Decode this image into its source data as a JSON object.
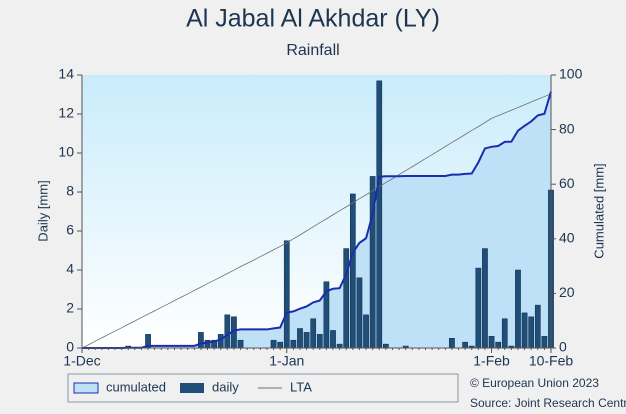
{
  "chart_data": {
    "type": "bar",
    "title": "Al Jabal Al Akhdar (LY)",
    "subtitle": "Rainfall",
    "y_label": "Daily [mm]",
    "y2_label": "Cumulated [mm]",
    "categories": [
      "1-Dec",
      null,
      null,
      null,
      null,
      null,
      null,
      null,
      null,
      null,
      null,
      null,
      null,
      null,
      null,
      null,
      null,
      null,
      null,
      null,
      null,
      null,
      null,
      null,
      null,
      null,
      null,
      null,
      null,
      null,
      null,
      "1-Jan",
      null,
      null,
      null,
      null,
      null,
      null,
      null,
      null,
      null,
      null,
      null,
      null,
      null,
      null,
      null,
      null,
      null,
      null,
      null,
      null,
      null,
      null,
      null,
      null,
      null,
      null,
      null,
      null,
      null,
      null,
      "1-Feb",
      null,
      null,
      null,
      null,
      null,
      null,
      null,
      null,
      "10-Feb"
    ],
    "ylim": [
      0,
      14
    ],
    "yticks": [
      0,
      2,
      4,
      6,
      8,
      10,
      12,
      14
    ],
    "y2lim": [
      0,
      100
    ],
    "y2ticks": [
      0,
      20,
      40,
      60,
      80,
      100
    ],
    "series": [
      {
        "name": "cumulated",
        "type": "area",
        "axis": "y2",
        "color": "#1a2db0",
        "fill": "#bfe1f7",
        "values": [
          0,
          0,
          0,
          0,
          0,
          0,
          0,
          0.1,
          0.1,
          0.1,
          0.8,
          0.8,
          0.8,
          0.8,
          0.8,
          0.8,
          0.8,
          0.8,
          1.6,
          2.0,
          2.4,
          3.1,
          4.8,
          6.4,
          6.8,
          6.8,
          6.8,
          6.8,
          6.8,
          7.2,
          7.5,
          13.0,
          13.4,
          14.4,
          15.2,
          16.7,
          17.4,
          20.8,
          21.7,
          21.9,
          27.0,
          34.9,
          38.5,
          40.2,
          49.0,
          62.7,
          62.9,
          62.9,
          62.9,
          63.0,
          63.0,
          63.0,
          63.0,
          63.0,
          63.0,
          63.0,
          63.5,
          63.5,
          63.8,
          63.9,
          68.0,
          73.1,
          73.7,
          74.0,
          75.5,
          75.6,
          79.6,
          81.4,
          83.0,
          85.2,
          85.8,
          93.9
        ]
      },
      {
        "name": "daily",
        "type": "bar",
        "color": "#1f4e79",
        "values": [
          0,
          0,
          0,
          0,
          0,
          0,
          0,
          0.1,
          0,
          0,
          0.7,
          0,
          0,
          0,
          0,
          0,
          0,
          0,
          0.8,
          0.4,
          0.4,
          0.7,
          1.7,
          1.6,
          0.4,
          0,
          0,
          0,
          0,
          0.4,
          0.3,
          5.5,
          0.4,
          1.0,
          0.8,
          1.5,
          0.7,
          3.4,
          0.9,
          0.2,
          5.1,
          7.9,
          3.6,
          1.7,
          8.8,
          13.7,
          0.2,
          0,
          0,
          0.1,
          0,
          0,
          0,
          0,
          0,
          0,
          0.5,
          0,
          0.3,
          0.1,
          4.1,
          5.1,
          0.6,
          0.3,
          1.5,
          0.1,
          4.0,
          1.8,
          1.6,
          2.2,
          0.6,
          8.1
        ]
      },
      {
        "name": "LTA",
        "type": "line",
        "axis": "y2",
        "color": "#6e6e6e",
        "values": [
          0,
          1.2,
          2.5,
          3.7,
          5.0,
          6.2,
          7.4,
          8.7,
          9.9,
          11.2,
          12.4,
          13.6,
          14.9,
          16.1,
          17.4,
          18.6,
          19.8,
          21.1,
          22.3,
          23.6,
          24.8,
          26.0,
          27.3,
          28.5,
          29.8,
          31.0,
          32.2,
          33.5,
          34.7,
          36.0,
          37.2,
          38.5,
          40.0,
          41.4,
          42.9,
          44.4,
          45.9,
          47.3,
          48.8,
          50.3,
          51.7,
          53.2,
          54.7,
          56.1,
          57.6,
          59.1,
          60.6,
          62.0,
          63.5,
          65.0,
          66.4,
          67.9,
          69.4,
          70.8,
          72.3,
          73.8,
          75.3,
          76.7,
          78.2,
          79.7,
          81.1,
          82.6,
          84.1,
          85.1,
          86.1,
          87.1,
          88.1,
          89.1,
          90.1,
          91.1,
          92.1,
          93.1
        ]
      }
    ],
    "credits": [
      "© European Union 2023",
      "Source: Joint Research Centre"
    ]
  }
}
